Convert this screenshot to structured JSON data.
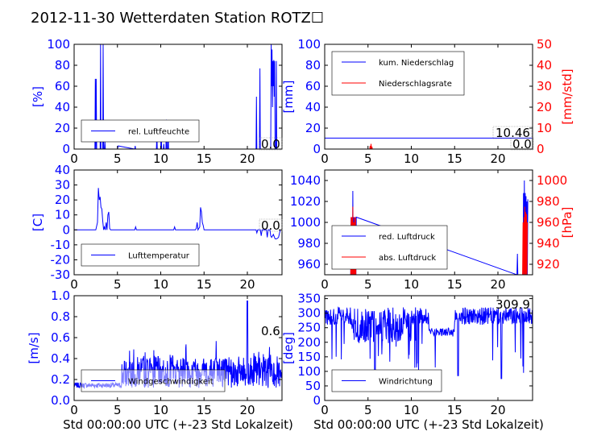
{
  "title": "2012-11-30 Wetterdaten Station ROTZ☐",
  "colors": {
    "primary": "#0000ff",
    "secondary": "#ff0000",
    "frame": "#000000"
  },
  "chart_data": [
    {
      "id": "humidity",
      "type": "line",
      "ylabel": "[%]",
      "xlim": [
        0,
        24
      ],
      "ylim": [
        0,
        100
      ],
      "xticks": [
        0,
        5,
        10,
        15,
        20
      ],
      "yticks": [
        0,
        20,
        40,
        60,
        80,
        100
      ],
      "legend": {
        "position": "lower-left",
        "entries": [
          "rel. Luftfeuchte"
        ]
      },
      "annotations": [
        {
          "text": "0.0"
        }
      ],
      "series": [
        {
          "name": "rel. Luftfeuchte",
          "color": "#0000ff",
          "x": [
            0,
            2.4,
            2.45,
            2.5,
            2.55,
            2.6,
            3.0,
            3.05,
            3.1,
            3.3,
            3.35,
            3.4,
            3.5,
            3.55,
            3.6,
            5.0,
            5.1,
            7,
            7.05,
            7.1,
            9.5,
            9.55,
            9.6,
            10.0,
            10.05,
            10.1,
            10.3,
            10.35,
            10.4,
            10.6,
            10.65,
            10.7,
            10.8,
            10.85,
            10.9,
            21.0,
            21.05,
            21.1,
            21.4,
            21.45,
            21.5,
            22.7,
            22.75,
            22.8,
            22.85,
            22.9,
            22.95,
            23.0,
            23.05,
            23.1,
            23.15,
            23.2,
            23.3,
            23.35,
            23.4,
            24
          ],
          "y": [
            0,
            0,
            67,
            0,
            67,
            0,
            0,
            100,
            0,
            0,
            100,
            0,
            0,
            7,
            0,
            0,
            3,
            0,
            3,
            0,
            0,
            15,
            0,
            0,
            22,
            0,
            0,
            5,
            0,
            0,
            28,
            0,
            0,
            20,
            0,
            0,
            50,
            0,
            0,
            77,
            0,
            0,
            100,
            60,
            95,
            40,
            84,
            60,
            85,
            50,
            84,
            0,
            0,
            84,
            0,
            0
          ]
        }
      ]
    },
    {
      "id": "precip",
      "type": "line",
      "ylabel": "[mm]",
      "ylabel_right": "[mm/std]",
      "xlim": [
        0,
        24
      ],
      "ylim": [
        0,
        100
      ],
      "ylim_right": [
        0,
        50
      ],
      "xticks": [
        0,
        5,
        10,
        15,
        20
      ],
      "yticks": [
        0,
        20,
        40,
        60,
        80,
        100
      ],
      "yticks_right": [
        0,
        10,
        20,
        30,
        40,
        50
      ],
      "legend": {
        "position": "upper-left",
        "entries": [
          "kum. Niederschlag",
          "Niederschlagsrate"
        ]
      },
      "annotations": [
        {
          "text": "10.46"
        },
        {
          "text": "0.0"
        }
      ],
      "series": [
        {
          "name": "kum. Niederschlag",
          "axis": "left",
          "color": "#0000ff",
          "x": [
            0,
            24
          ],
          "y": [
            10.46,
            10.46
          ]
        },
        {
          "name": "Niederschlagsrate",
          "axis": "right",
          "color": "#ff0000",
          "x": [
            0,
            5.2,
            5.25,
            5.3,
            5.35,
            5.4,
            5.45,
            5.5,
            24
          ],
          "y": [
            0,
            0,
            1.5,
            0,
            2.5,
            0,
            1.2,
            0,
            0
          ]
        }
      ]
    },
    {
      "id": "temperature",
      "type": "line",
      "ylabel": "[C]",
      "xlim": [
        0,
        24
      ],
      "ylim": [
        -30,
        40
      ],
      "xticks": [
        0,
        5,
        10,
        15,
        20
      ],
      "yticks": [
        -30,
        -20,
        -10,
        0,
        10,
        20,
        30,
        40
      ],
      "legend": {
        "position": "lower-left",
        "entries": [
          "Lufttemperatur"
        ]
      },
      "annotations": [
        {
          "text": "0.0"
        }
      ],
      "series": [
        {
          "name": "Lufttemperatur",
          "color": "#0000ff",
          "x": [
            0,
            2.5,
            2.7,
            2.8,
            2.9,
            3.0,
            3.1,
            3.2,
            3.3,
            3.4,
            3.5,
            3.6,
            3.7,
            3.8,
            3.9,
            4.0,
            4.1,
            4.2,
            4.3,
            7.0,
            7.1,
            7.2,
            11.5,
            11.6,
            11.7,
            14.0,
            14.1,
            14.2,
            14.3,
            14.5,
            14.6,
            14.7,
            14.8,
            14.9,
            15.0,
            15.2,
            21.0,
            21.1,
            21.2,
            21.5,
            21.6,
            21.7,
            22.2,
            22.3,
            22.4,
            22.6,
            22.7,
            22.8,
            23.0,
            23.2,
            23.4,
            23.6,
            23.8
          ],
          "y": [
            0,
            0,
            5,
            28,
            20,
            22,
            15,
            14,
            6,
            0,
            2,
            0,
            5,
            0,
            10,
            12,
            1,
            0,
            0,
            0,
            2,
            0,
            0,
            2,
            0,
            0,
            1,
            5,
            0,
            2,
            15,
            12,
            5,
            3,
            0,
            0,
            0,
            -2,
            0,
            0,
            -4,
            0,
            0,
            -5,
            0,
            0,
            -4,
            -5,
            -3,
            -6,
            -6,
            -5,
            0
          ]
        }
      ]
    },
    {
      "id": "pressure",
      "type": "line",
      "ylabel_right": "[hPa]",
      "xlim": [
        0,
        24
      ],
      "ylim": [
        950,
        1050
      ],
      "ylim_right": [
        910,
        1010
      ],
      "xticks": [
        0,
        5,
        10,
        15,
        20
      ],
      "yticks": [
        960,
        980,
        1000,
        1020,
        1040
      ],
      "yticks_right": [
        920,
        940,
        960,
        980,
        1000
      ],
      "legend": {
        "position": "lower-left",
        "entries": [
          "red. Luftdruck",
          "abs. Luftdruck"
        ]
      },
      "series": [
        {
          "name": "red. Luftdruck",
          "axis": "left",
          "color": "#0000ff",
          "x": [
            3.0,
            3.05,
            3.1,
            3.15,
            3.2,
            3.25,
            3.3,
            3.35,
            3.4,
            3.45,
            3.5,
            3.55,
            3.6,
            3.65,
            22.2,
            22.25,
            22.3,
            22.9,
            22.95,
            23.0,
            23.05,
            23.1,
            23.15,
            23.2,
            23.25,
            23.3,
            23.35,
            23.4,
            23.45
          ],
          "y": [
            950,
            1005,
            950,
            1005,
            950,
            1030,
            950,
            1005,
            950,
            1005,
            950,
            1005,
            950,
            1005,
            950,
            970,
            950,
            950,
            1028,
            950,
            1040,
            950,
            1028,
            950,
            1025,
            950,
            1020,
            950,
            1022
          ]
        },
        {
          "name": "abs. Luftdruck",
          "axis": "right",
          "color": "#ff0000",
          "x": [
            3.0,
            3.05,
            3.1,
            3.15,
            3.2,
            3.25,
            3.3,
            3.35,
            3.4,
            3.45,
            3.5,
            3.55,
            3.6,
            22.85,
            22.9,
            22.95,
            23.0,
            23.05,
            23.1,
            23.15,
            23.2,
            23.25,
            23.3,
            23.35,
            23.4
          ],
          "y": [
            910,
            965,
            910,
            965,
            910,
            975,
            910,
            960,
            910,
            965,
            910,
            965,
            910,
            910,
            960,
            910,
            965,
            910,
            975,
            910,
            970,
            910,
            968,
            910,
            960
          ]
        }
      ]
    },
    {
      "id": "wind_speed",
      "type": "line",
      "ylabel": "[m/s]",
      "xlabel": "Std 00:00:00 UTC (+-23 Std Lokalzeit)",
      "xlim": [
        0,
        24
      ],
      "ylim": [
        0,
        1.0
      ],
      "xticks": [
        0,
        5,
        10,
        15,
        20
      ],
      "yticks": [
        0.0,
        0.2,
        0.4,
        0.6,
        0.8,
        1.0
      ],
      "legend": {
        "position": "lower-left",
        "entries": [
          "Windgeschwindigkeit"
        ]
      },
      "annotations": [
        {
          "text": "0.6"
        }
      ],
      "series": [
        {
          "name": "Windgeschwindigkeit",
          "color": "#0000ff",
          "generated": "noisy"
        }
      ]
    },
    {
      "id": "wind_dir",
      "type": "line",
      "ylabel": "[deg]",
      "xlabel": "Std 00:00:00 UTC (+-23 Std Lokalzeit)",
      "xlim": [
        0,
        24
      ],
      "ylim": [
        0,
        360
      ],
      "xticks": [
        0,
        5,
        10,
        15,
        20
      ],
      "yticks": [
        0,
        50,
        100,
        150,
        200,
        250,
        300,
        350
      ],
      "legend": {
        "position": "lower-left",
        "entries": [
          "Windrichtung"
        ]
      },
      "annotations": [
        {
          "text": "309.9"
        }
      ],
      "series": [
        {
          "name": "Windrichtung",
          "color": "#0000ff",
          "generated": "noisy"
        }
      ]
    }
  ]
}
